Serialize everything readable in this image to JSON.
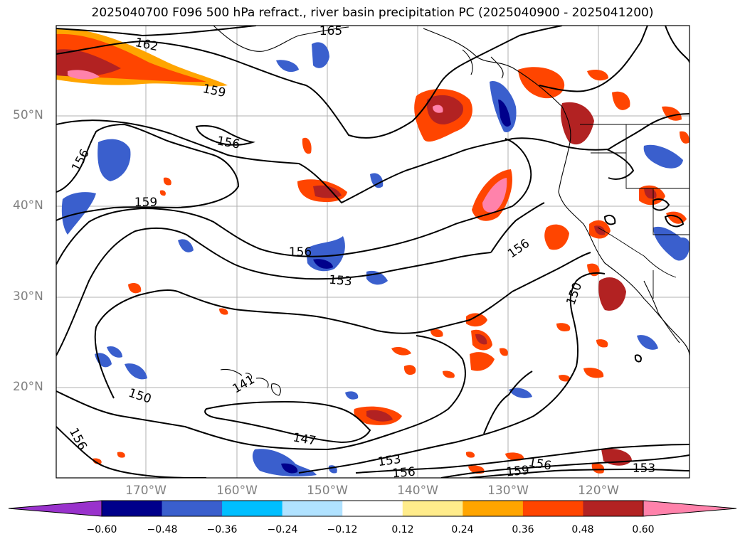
{
  "title": "2025040700 F096 500 hPa refract., river basin precipitation PC (2025040900 - 2025041200)",
  "lat_labels": [
    "50°N",
    "40°N",
    "30°N",
    "20°N"
  ],
  "lon_labels": [
    "170°W",
    "160°W",
    "150°W",
    "140°W",
    "130°W",
    "120°W"
  ],
  "contour_labels": [
    "162",
    "165",
    "159",
    "156",
    "156",
    "159",
    "156",
    "153",
    "156",
    "150",
    "150",
    "147",
    "141",
    "156",
    "153",
    "156",
    "159",
    "156",
    "153"
  ],
  "colorbar": {
    "colors": [
      "#9932cc",
      "#00008b",
      "#3a5fcd",
      "#00bfff",
      "#b0e2ff",
      "#ffffff",
      "#ffec8b",
      "#ffa500",
      "#ff4500",
      "#b22222",
      "#ff82ab"
    ],
    "ticks": [
      "−0.60",
      "−0.48",
      "−0.36",
      "−0.24",
      "−0.12",
      "0.12",
      "0.24",
      "0.36",
      "0.48",
      "0.60"
    ]
  },
  "palette": {
    "positive": [
      "#ffec8b",
      "#ffa500",
      "#ff4500",
      "#b22222",
      "#ff82ab"
    ],
    "negative": [
      "#b0e2ff",
      "#00bfff",
      "#3a5fcd",
      "#00008b"
    ]
  }
}
